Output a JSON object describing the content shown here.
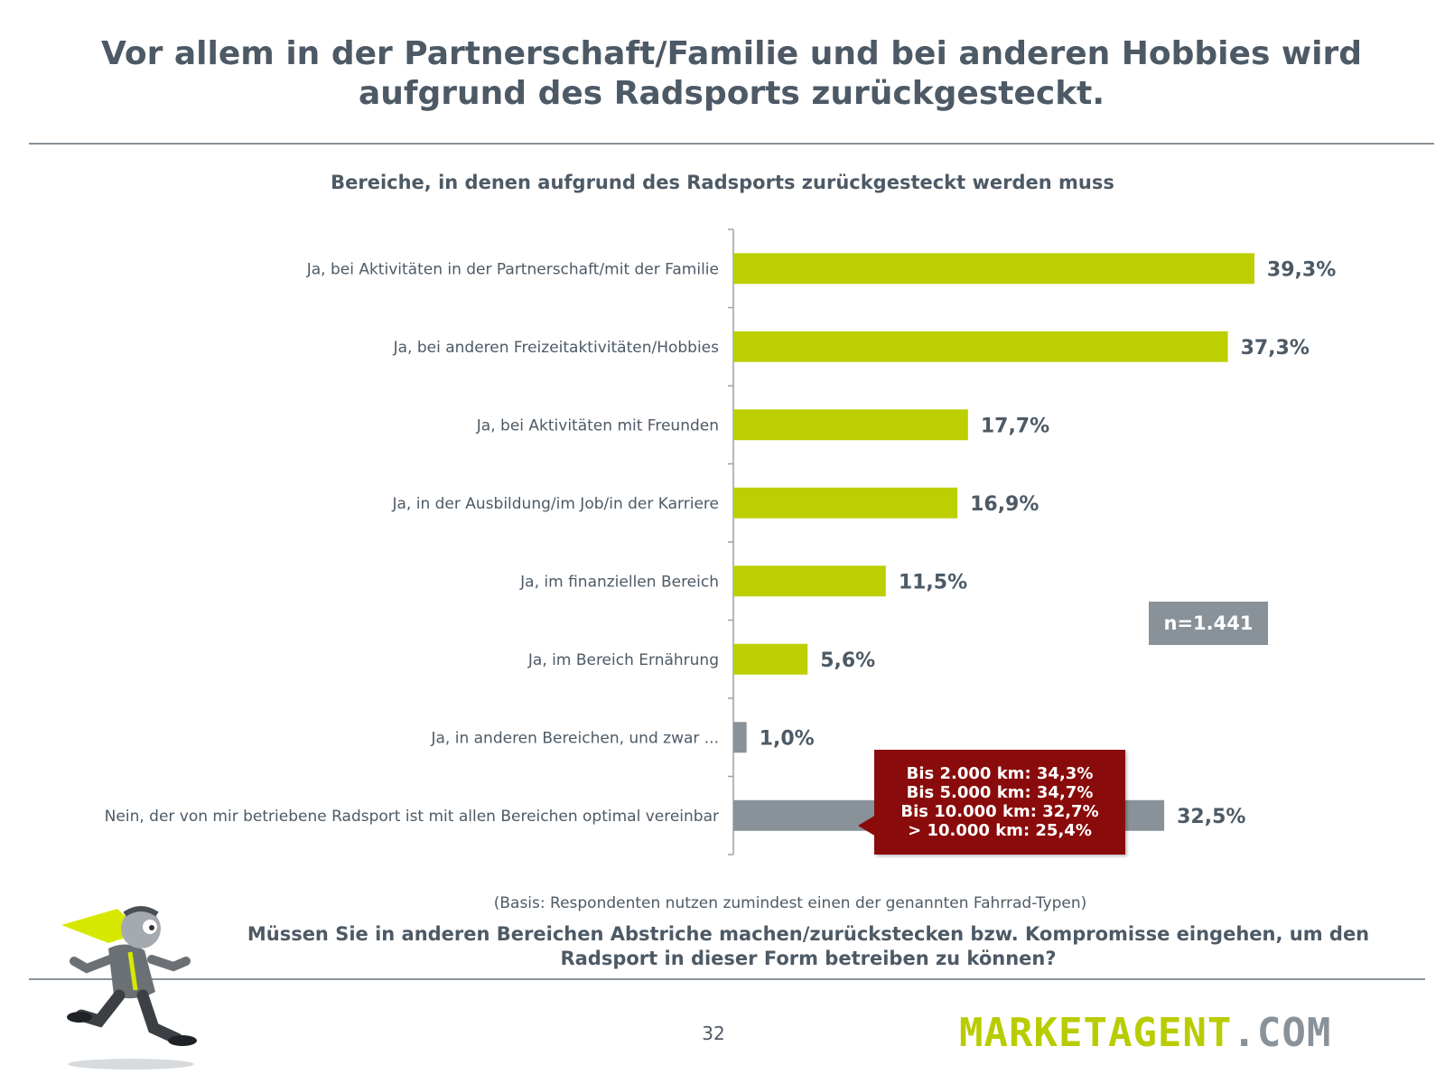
{
  "header": {
    "title_line1": "Vor allem in der Partnerschaft/Familie und bei anderen Hobbies wird",
    "title_line2": "aufgrund des Radsports zurückgesteckt."
  },
  "chart_data": {
    "type": "bar",
    "orientation": "horizontal",
    "title": "Bereiche, in denen aufgrund des Radsports zurückgesteckt werden muss",
    "categories": [
      "Ja, bei Aktivitäten in der Partnerschaft/mit der Familie",
      "Ja, bei anderen Freizeitaktivitäten/Hobbies",
      "Ja, bei Aktivitäten mit Freunden",
      "Ja, in der Ausbildung/im Job/in der Karriere",
      "Ja, im finanziellen Bereich",
      "Ja, im Bereich Ernährung",
      "Ja, in anderen Bereichen, und zwar ...",
      "Nein, der von mir betriebene Radsport ist mit allen Bereichen optimal vereinbar"
    ],
    "values": [
      39.3,
      37.3,
      17.7,
      16.9,
      11.5,
      5.6,
      1.0,
      32.5
    ],
    "value_labels": [
      "39,3%",
      "37,3%",
      "17,7%",
      "16,9%",
      "11,5%",
      "5,6%",
      "1,0%",
      "32,5%"
    ],
    "unit": "%",
    "colors": [
      "#bccf00",
      "#bccf00",
      "#bccf00",
      "#bccf00",
      "#bccf00",
      "#bccf00",
      "#8a9299",
      "#8a9299"
    ],
    "xlim": [
      0,
      40
    ],
    "grid": false,
    "legend": "none"
  },
  "sample_size": "n=1.441",
  "callout": {
    "lines": [
      "Bis 2.000 km: 34,3%",
      "Bis 5.000 km: 34,7%",
      "Bis 10.000 km: 32,7%",
      "> 10.000 km: 25,4%"
    ],
    "color": "#8a0b0b"
  },
  "footer": {
    "basis": "(Basis: Respondenten nutzen zumindest einen der genannten Fahrrad-Typen)",
    "question": "Müssen Sie in anderen Bereichen Abstriche machen/zurückstecken bzw. Kompromisse eingehen, um den Radsport in dieser Form betreiben zu können?",
    "page_number": "32",
    "logo_brand": "MARKETAGENT",
    "logo_tld": ".COM"
  }
}
